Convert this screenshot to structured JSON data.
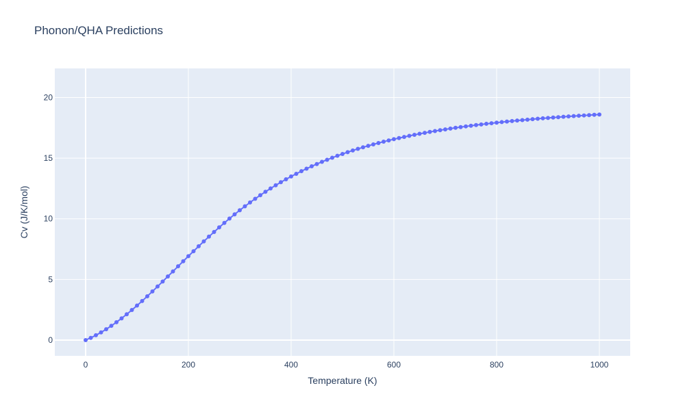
{
  "chart_data": {
    "type": "line",
    "title": "Phonon/QHA Predictions",
    "xlabel": "Temperature (K)",
    "ylabel": "Cv (J/K/mol)",
    "xlim": [
      -60,
      1060
    ],
    "ylim": [
      -1.3,
      22.4
    ],
    "x_ticks": [
      0,
      200,
      400,
      600,
      800,
      1000
    ],
    "y_ticks": [
      0,
      5,
      10,
      15,
      20
    ],
    "grid": true,
    "legend": "none",
    "plot_background": "#e5ecf6",
    "paper_background": "#ffffff",
    "grid_color": "#ffffff",
    "series": [
      {
        "color": "#636efa",
        "mode": "lines+markers",
        "x": [
          0,
          10,
          20,
          30,
          40,
          50,
          60,
          70,
          80,
          90,
          100,
          110,
          120,
          130,
          140,
          150,
          160,
          170,
          180,
          190,
          200,
          210,
          220,
          230,
          240,
          250,
          260,
          270,
          280,
          290,
          300,
          310,
          320,
          330,
          340,
          350,
          360,
          370,
          380,
          390,
          400,
          410,
          420,
          430,
          440,
          450,
          460,
          470,
          480,
          490,
          500,
          510,
          520,
          530,
          540,
          550,
          560,
          570,
          580,
          590,
          600,
          610,
          620,
          630,
          640,
          650,
          660,
          670,
          680,
          690,
          700,
          710,
          720,
          730,
          740,
          750,
          760,
          770,
          780,
          790,
          800,
          810,
          820,
          830,
          840,
          850,
          860,
          870,
          880,
          890,
          900,
          910,
          920,
          930,
          940,
          950,
          960,
          970,
          980,
          990,
          1000
        ],
        "y": [
          0.0,
          0.184,
          0.397,
          0.634,
          0.893,
          1.173,
          1.473,
          1.791,
          2.127,
          2.478,
          2.844,
          3.222,
          3.612,
          4.011,
          4.417,
          4.829,
          5.245,
          5.663,
          6.082,
          6.5,
          6.916,
          7.328,
          7.735,
          8.136,
          8.53,
          8.916,
          9.293,
          9.661,
          10.019,
          10.367,
          10.704,
          11.031,
          11.347,
          11.652,
          11.946,
          12.229,
          12.502,
          12.764,
          13.016,
          13.258,
          13.49,
          13.713,
          13.927,
          14.132,
          14.328,
          14.517,
          14.697,
          14.87,
          15.036,
          15.195,
          15.347,
          15.493,
          15.633,
          15.767,
          15.895,
          16.019,
          16.137,
          16.25,
          16.359,
          16.463,
          16.564,
          16.66,
          16.752,
          16.841,
          16.926,
          17.008,
          17.087,
          17.163,
          17.236,
          17.306,
          17.374,
          17.439,
          17.502,
          17.562,
          17.621,
          17.677,
          17.731,
          17.783,
          17.833,
          17.882,
          17.929,
          17.974,
          18.018,
          18.06,
          18.101,
          18.14,
          18.178,
          18.215,
          18.251,
          18.285,
          18.318,
          18.351,
          18.382,
          18.412,
          18.441,
          18.47,
          18.497,
          18.524,
          18.55,
          18.575,
          18.599
        ]
      }
    ]
  }
}
